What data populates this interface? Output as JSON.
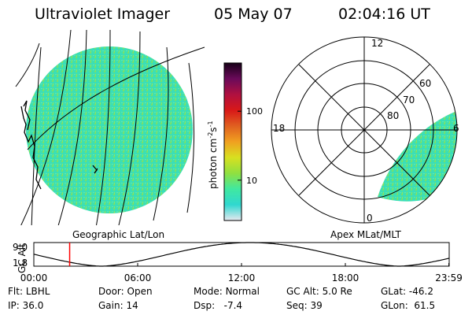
{
  "header": {
    "title": "Ultraviolet Imager",
    "date": "05 May 07",
    "time": "02:04:16 UT"
  },
  "left_panel": {
    "caption": "Geographic Lat/Lon"
  },
  "right_panel": {
    "caption": "Apex MLat/MLT",
    "mlt_labels": [
      "12",
      "18",
      "6",
      "0"
    ],
    "lat_labels": [
      "60",
      "70",
      "80"
    ]
  },
  "colorbar": {
    "unit_label": "photon cm",
    "exp1": "-2",
    "mid": "s",
    "exp2": "-1",
    "ticks": [
      "100",
      "10"
    ],
    "ticks_log": [
      100,
      10
    ],
    "log_range": [
      2.6,
      500
    ],
    "scale": "log",
    "colors": [
      "#e8e8ef",
      "#30d8d0",
      "#40e8a0",
      "#90e040",
      "#d8e020",
      "#f0a020",
      "#e06020",
      "#d81818",
      "#b01040",
      "#6a0a5a",
      "#180018"
    ]
  },
  "altitude_plot": {
    "ylabel": "GC Alt",
    "ytick_top": "9.0",
    "ytick_bottom": "1.8",
    "yrange": [
      1.8,
      9.0
    ],
    "x_ticks": [
      "00:00",
      "06:00",
      "12:00",
      "18:00",
      "23:59"
    ],
    "current_time_hours": 2.07,
    "cursor_color": "#ff0000"
  },
  "footer": {
    "flt_label": "Flt:",
    "flt_value": "LBHL",
    "door_label": "Door:",
    "door_value": "Open",
    "mode_label": "Mode:",
    "mode_value": "Normal",
    "gcalt_label": "GC Alt:",
    "gcalt_value": "5.0 Re",
    "glat_label": "GLat:",
    "glat_value": "-46.2",
    "ip_label": "IP:",
    "ip_value": "36.0",
    "gain_label": "Gain:",
    "gain_value": "14",
    "dsp_label": "Dsp:",
    "dsp_value": "-7.4",
    "seq_label": "Seq:",
    "seq_value": "39",
    "glon_label": "GLon:",
    "glon_value": "61.5"
  }
}
